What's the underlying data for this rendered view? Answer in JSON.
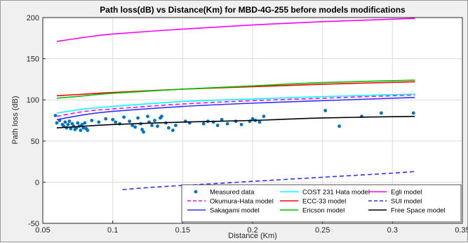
{
  "chart_data": {
    "type": "line",
    "title": "Path loss(dB) vs Distance(Km) for MBD-4G-255 before models modifications",
    "xlabel": "Distance (Km)",
    "ylabel": "Path loss (dB)",
    "xlim": [
      0.05,
      0.35
    ],
    "ylim": [
      -50,
      200
    ],
    "xticks": [
      "0.05",
      "0.1",
      "0.15",
      "0.2",
      "0.25",
      "0.3",
      "0.35"
    ],
    "yticks": [
      "-50",
      "0",
      "50",
      "100",
      "150",
      "200"
    ],
    "grid": true,
    "legend_position": "bottom-right",
    "legend_columns": 3,
    "series": [
      {
        "name": "Measured data",
        "kind": "scatter",
        "color": "#0072bd",
        "points": [
          [
            0.059,
            81
          ],
          [
            0.06,
            72
          ],
          [
            0.062,
            75
          ],
          [
            0.064,
            70
          ],
          [
            0.065,
            68
          ],
          [
            0.066,
            73
          ],
          [
            0.067,
            66
          ],
          [
            0.068,
            70
          ],
          [
            0.069,
            74
          ],
          [
            0.07,
            65
          ],
          [
            0.071,
            71
          ],
          [
            0.072,
            68
          ],
          [
            0.073,
            64
          ],
          [
            0.074,
            66
          ],
          [
            0.075,
            72
          ],
          [
            0.076,
            68
          ],
          [
            0.077,
            63
          ],
          [
            0.078,
            70
          ],
          [
            0.079,
            66
          ],
          [
            0.08,
            72
          ],
          [
            0.081,
            65
          ],
          [
            0.082,
            63
          ],
          [
            0.085,
            75
          ],
          [
            0.09,
            73
          ],
          [
            0.095,
            77
          ],
          [
            0.1,
            76
          ],
          [
            0.102,
            73
          ],
          [
            0.105,
            71
          ],
          [
            0.108,
            79
          ],
          [
            0.112,
            74
          ],
          [
            0.114,
            69
          ],
          [
            0.116,
            67
          ],
          [
            0.118,
            78
          ],
          [
            0.12,
            71
          ],
          [
            0.121,
            64
          ],
          [
            0.122,
            61
          ],
          [
            0.125,
            80
          ],
          [
            0.126,
            73
          ],
          [
            0.128,
            69
          ],
          [
            0.13,
            75
          ],
          [
            0.132,
            68
          ],
          [
            0.134,
            78
          ],
          [
            0.135,
            80
          ],
          [
            0.138,
            72
          ],
          [
            0.14,
            66
          ],
          [
            0.143,
            63
          ],
          [
            0.145,
            69
          ],
          [
            0.152,
            74
          ],
          [
            0.155,
            72
          ],
          [
            0.165,
            71
          ],
          [
            0.168,
            74
          ],
          [
            0.172,
            73
          ],
          [
            0.175,
            69
          ],
          [
            0.178,
            76
          ],
          [
            0.182,
            71
          ],
          [
            0.188,
            74
          ],
          [
            0.192,
            70
          ],
          [
            0.198,
            74
          ],
          [
            0.2,
            77
          ],
          [
            0.202,
            75
          ],
          [
            0.205,
            73
          ],
          [
            0.208,
            80
          ],
          [
            0.252,
            87
          ],
          [
            0.262,
            68
          ],
          [
            0.278,
            80
          ],
          [
            0.292,
            84
          ],
          [
            0.315,
            84
          ]
        ]
      },
      {
        "name": "Okumura-Hata model",
        "kind": "line",
        "dash": "6,4",
        "color": "#ff00ff",
        "points": [
          [
            0.06,
            80
          ],
          [
            0.08,
            86
          ],
          [
            0.1,
            89
          ],
          [
            0.15,
            95
          ],
          [
            0.2,
            99
          ],
          [
            0.25,
            102
          ],
          [
            0.316,
            106
          ]
        ]
      },
      {
        "name": "Sakagami model",
        "kind": "line",
        "color": "#3030ff",
        "points": [
          [
            0.06,
            76
          ],
          [
            0.08,
            82
          ],
          [
            0.1,
            86
          ],
          [
            0.15,
            92
          ],
          [
            0.2,
            96
          ],
          [
            0.25,
            99
          ],
          [
            0.316,
            103
          ]
        ]
      },
      {
        "name": "COST 231 Hata model",
        "kind": "line",
        "color": "#00ffff",
        "points": [
          [
            0.06,
            84
          ],
          [
            0.08,
            89
          ],
          [
            0.1,
            92
          ],
          [
            0.15,
            98
          ],
          [
            0.2,
            101
          ],
          [
            0.25,
            104
          ],
          [
            0.316,
            107
          ]
        ]
      },
      {
        "name": "ECC-33 model",
        "kind": "line",
        "color": "#ff0000",
        "points": [
          [
            0.06,
            105
          ],
          [
            0.08,
            107
          ],
          [
            0.1,
            109
          ],
          [
            0.15,
            113
          ],
          [
            0.2,
            116
          ],
          [
            0.25,
            119
          ],
          [
            0.316,
            122
          ]
        ]
      },
      {
        "name": "Ericson model",
        "kind": "line",
        "color": "#00c000",
        "points": [
          [
            0.06,
            102
          ],
          [
            0.08,
            105
          ],
          [
            0.1,
            108
          ],
          [
            0.15,
            113
          ],
          [
            0.2,
            117
          ],
          [
            0.25,
            121
          ],
          [
            0.316,
            124
          ]
        ]
      },
      {
        "name": "Egli model",
        "kind": "line",
        "color": "#ff00ff",
        "points": [
          [
            0.06,
            171
          ],
          [
            0.08,
            176
          ],
          [
            0.1,
            180
          ],
          [
            0.15,
            186
          ],
          [
            0.2,
            191
          ],
          [
            0.25,
            195
          ],
          [
            0.316,
            199
          ]
        ]
      },
      {
        "name": "SUI model",
        "kind": "line",
        "dash": "6,4",
        "color": "#3030ff",
        "points": [
          [
            0.107,
            -9
          ],
          [
            0.13,
            -6
          ],
          [
            0.15,
            -4
          ],
          [
            0.2,
            1
          ],
          [
            0.25,
            6
          ],
          [
            0.3,
            11
          ],
          [
            0.316,
            13
          ]
        ]
      },
      {
        "name": "Free Space model",
        "kind": "line",
        "color": "#000000",
        "points": [
          [
            0.06,
            66
          ],
          [
            0.08,
            68
          ],
          [
            0.1,
            70
          ],
          [
            0.15,
            73
          ],
          [
            0.2,
            75
          ],
          [
            0.25,
            78
          ],
          [
            0.316,
            80
          ]
        ]
      }
    ],
    "legend_order": [
      "Measured data",
      "COST 231 Hata model",
      "Egli model",
      "Okumura-Hata model",
      "ECC-33 model",
      "SUI model",
      "Sakagami model",
      "Ericson model",
      "Free Space model"
    ]
  }
}
